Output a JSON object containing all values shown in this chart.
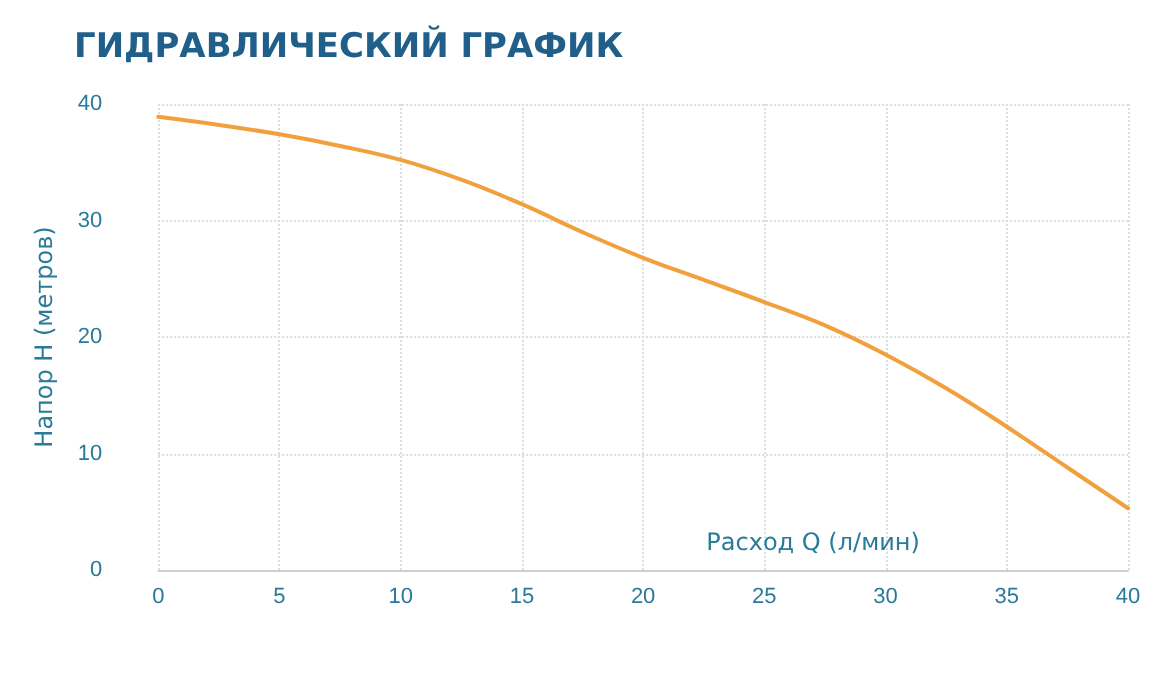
{
  "chart_data": {
    "type": "line",
    "title": "ГИДРАВЛИЧЕСКИЙ ГРАФИК",
    "xlabel": "Расход Q (л/мин)",
    "ylabel": "Напор Н (метров)",
    "x": [
      0,
      2.5,
      5,
      7.5,
      10,
      12.5,
      15,
      17.5,
      20,
      22.5,
      25,
      27.5,
      30,
      32.5,
      35,
      37.5,
      40
    ],
    "series": [
      {
        "color": "#f0a03c",
        "values": [
          38.9,
          38.2,
          37.4,
          36.4,
          35.2,
          33.5,
          31.4,
          29.0,
          26.8,
          24.9,
          23.0,
          21.0,
          18.5,
          15.6,
          12.3,
          8.8,
          5.3
        ]
      }
    ],
    "xlim": [
      0,
      40
    ],
    "xticks": [
      0,
      5,
      10,
      15,
      20,
      25,
      30,
      35,
      40
    ],
    "ylim": [
      0,
      40
    ],
    "yticks": [
      0,
      10,
      20,
      30,
      40
    ],
    "grid": true,
    "marker": "none",
    "line_style": "solid"
  }
}
